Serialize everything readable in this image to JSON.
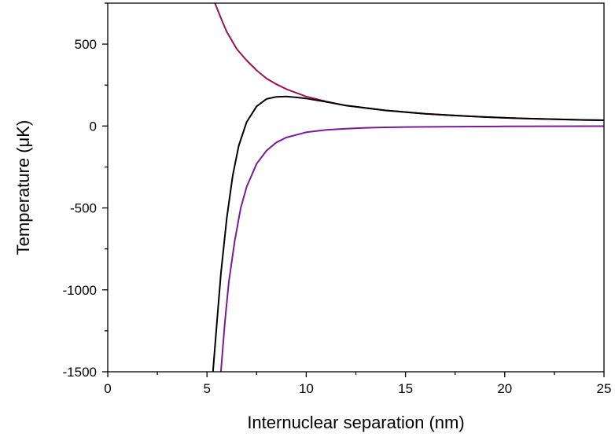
{
  "chart_data": {
    "type": "line",
    "title": "",
    "xlabel": "Internuclear separation (nm)",
    "ylabel": "Temperature (μK)",
    "xlim": [
      0,
      25
    ],
    "ylim": [
      -1500,
      750
    ],
    "x_ticks": [
      0,
      5,
      10,
      15,
      20,
      25
    ],
    "x_tick_labels": [
      "0",
      "5",
      "10",
      "15",
      "20",
      "25"
    ],
    "y_ticks": [
      -1500,
      -1000,
      -500,
      0,
      500
    ],
    "y_tick_labels": [
      "-1500",
      "-1000",
      "-500",
      "0",
      "500"
    ],
    "grid": false,
    "legend": "none",
    "series": [
      {
        "color": "#a0104a",
        "x": [
          5.4,
          5.6,
          5.8,
          6,
          6.5,
          7,
          7.5,
          8,
          8.5,
          9,
          10,
          11,
          12,
          13,
          14,
          15,
          16,
          17,
          18,
          19,
          20,
          21,
          22,
          23,
          24,
          25
        ],
        "y": [
          750,
          690,
          630,
          575,
          470,
          400,
          340,
          290,
          255,
          225,
          180,
          150,
          125,
          110,
          95,
          85,
          75,
          68,
          61,
          55,
          50,
          46,
          43,
          40,
          37,
          35
        ]
      },
      {
        "color": "#000000",
        "x": [
          5.3,
          5.5,
          5.7,
          6,
          6.3,
          6.6,
          7,
          7.5,
          8,
          8.5,
          9,
          9.5,
          10,
          11,
          12,
          13,
          14,
          15,
          16,
          17,
          18,
          19,
          20,
          21,
          22,
          23,
          24,
          25
        ],
        "y": [
          -1500,
          -1200,
          -900,
          -560,
          -300,
          -120,
          25,
          120,
          165,
          178,
          180,
          175,
          168,
          148,
          125,
          110,
          95,
          85,
          75,
          68,
          61,
          55,
          50,
          46,
          43,
          40,
          37,
          35
        ]
      },
      {
        "color": "#7a1a99",
        "x": [
          5.7,
          5.9,
          6.1,
          6.4,
          6.7,
          7,
          7.5,
          8,
          8.5,
          9,
          10,
          11,
          12,
          13,
          14,
          15,
          17,
          20,
          25
        ],
        "y": [
          -1500,
          -1200,
          -950,
          -700,
          -500,
          -370,
          -230,
          -150,
          -100,
          -70,
          -38,
          -24,
          -16,
          -11,
          -8,
          -6,
          -4,
          -2,
          -1
        ]
      }
    ]
  }
}
